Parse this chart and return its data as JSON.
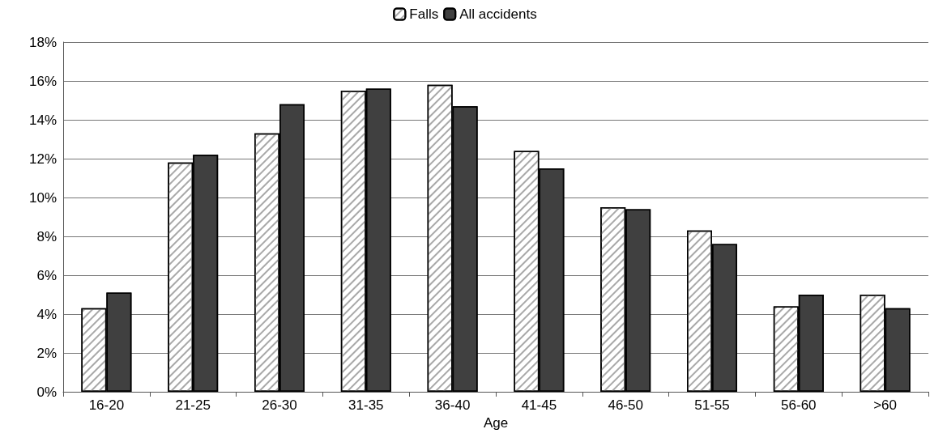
{
  "chart_data": {
    "type": "bar",
    "xlabel": "Age",
    "categories": [
      "16-20",
      "21-25",
      "26-30",
      "31-35",
      "36-40",
      "41-45",
      "46-50",
      "51-55",
      "56-60",
      ">60"
    ],
    "series": [
      {
        "name": "Falls",
        "color": "#ffffff",
        "values": [
          4.3,
          11.8,
          13.3,
          15.5,
          15.8,
          12.4,
          9.5,
          8.3,
          4.4,
          5.0
        ]
      },
      {
        "name": "All accidents",
        "color": "#404040",
        "values": [
          5.1,
          12.2,
          14.8,
          15.6,
          14.7,
          11.5,
          9.4,
          7.6,
          5.0,
          4.3
        ]
      }
    ],
    "ylim": [
      0,
      18
    ],
    "yticks": [
      {
        "value": 0,
        "label": "0%"
      },
      {
        "value": 2,
        "label": "2%"
      },
      {
        "value": 4,
        "label": "4%"
      },
      {
        "value": 6,
        "label": "6%"
      },
      {
        "value": 8,
        "label": "8%"
      },
      {
        "value": 10,
        "label": "10%"
      },
      {
        "value": 12,
        "label": "12%"
      },
      {
        "value": 14,
        "label": "14%"
      },
      {
        "value": 16,
        "label": "16%"
      },
      {
        "value": 18,
        "label": "18%"
      }
    ],
    "grid": "y",
    "legend": "top"
  }
}
